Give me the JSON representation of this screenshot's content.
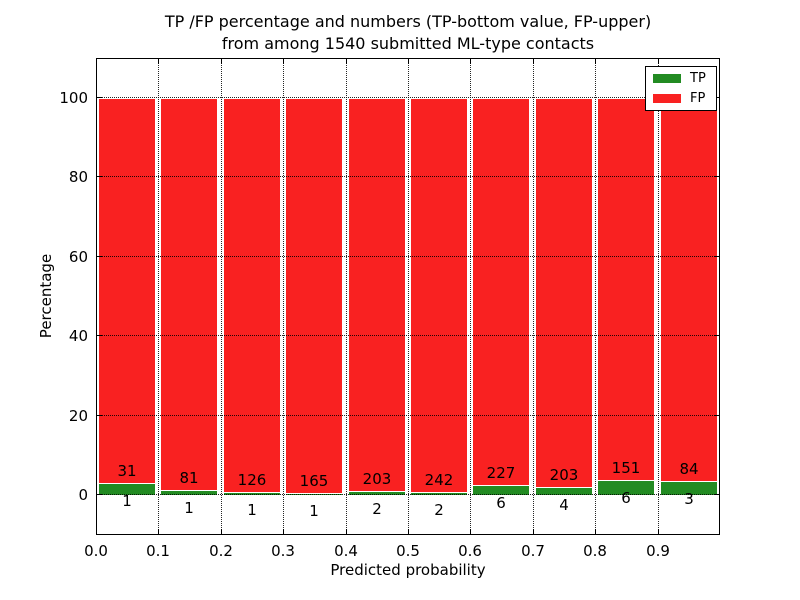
{
  "figure": {
    "title_line1": "TP /FP percentage and numbers (TP-bottom value, FP-upper)",
    "title_line2": "from among 1540 submitted ML-type contacts"
  },
  "axes": {
    "xlabel": "Predicted probability",
    "ylabel": "Percentage",
    "xtick_labels": [
      "0.0",
      "0.1",
      "0.2",
      "0.3",
      "0.4",
      "0.5",
      "0.6",
      "0.7",
      "0.8",
      "0.9"
    ],
    "ytick_labels": [
      "0",
      "20",
      "40",
      "60",
      "80",
      "100"
    ]
  },
  "legend": {
    "position": "upper right",
    "items": [
      {
        "label": "TP",
        "color": "#228B22"
      },
      {
        "label": "FP",
        "color": "#f92121"
      }
    ]
  },
  "chart_data": {
    "type": "bar",
    "stacked": true,
    "percentage_normalized": true,
    "title": "TP /FP percentage and numbers (TP-bottom value, FP-upper) from among 1540 submitted ML-type contacts",
    "xlabel": "Predicted probability",
    "ylabel": "Percentage",
    "total_contacts": 1540,
    "bin_left_edges": [
      0.0,
      0.1,
      0.2,
      0.3,
      0.4,
      0.5,
      0.6,
      0.7,
      0.8,
      0.9
    ],
    "bin_width": 0.1,
    "series": [
      {
        "name": "TP",
        "color": "#228B22",
        "counts": [
          1,
          1,
          1,
          1,
          2,
          2,
          6,
          4,
          6,
          3
        ]
      },
      {
        "name": "FP",
        "color": "#f92121",
        "counts": [
          31,
          81,
          126,
          165,
          203,
          242,
          227,
          203,
          151,
          84
        ]
      }
    ],
    "tp_percent": [
      3.13,
      1.22,
      0.79,
      0.6,
      0.98,
      0.82,
      2.58,
      1.93,
      3.82,
      3.45
    ],
    "fp_percent": [
      96.87,
      98.78,
      99.21,
      99.4,
      99.02,
      99.18,
      97.42,
      98.07,
      96.18,
      96.55
    ],
    "ylim": [
      -10,
      110
    ],
    "xlim": [
      0,
      1
    ],
    "yticks": [
      0,
      20,
      40,
      60,
      80,
      100
    ],
    "xticks": [
      0.0,
      0.1,
      0.2,
      0.3,
      0.4,
      0.5,
      0.6,
      0.7,
      0.8,
      0.9
    ],
    "grid": "dotted",
    "bar_edge_color": "#ffffff",
    "legend_position": "upper right"
  }
}
